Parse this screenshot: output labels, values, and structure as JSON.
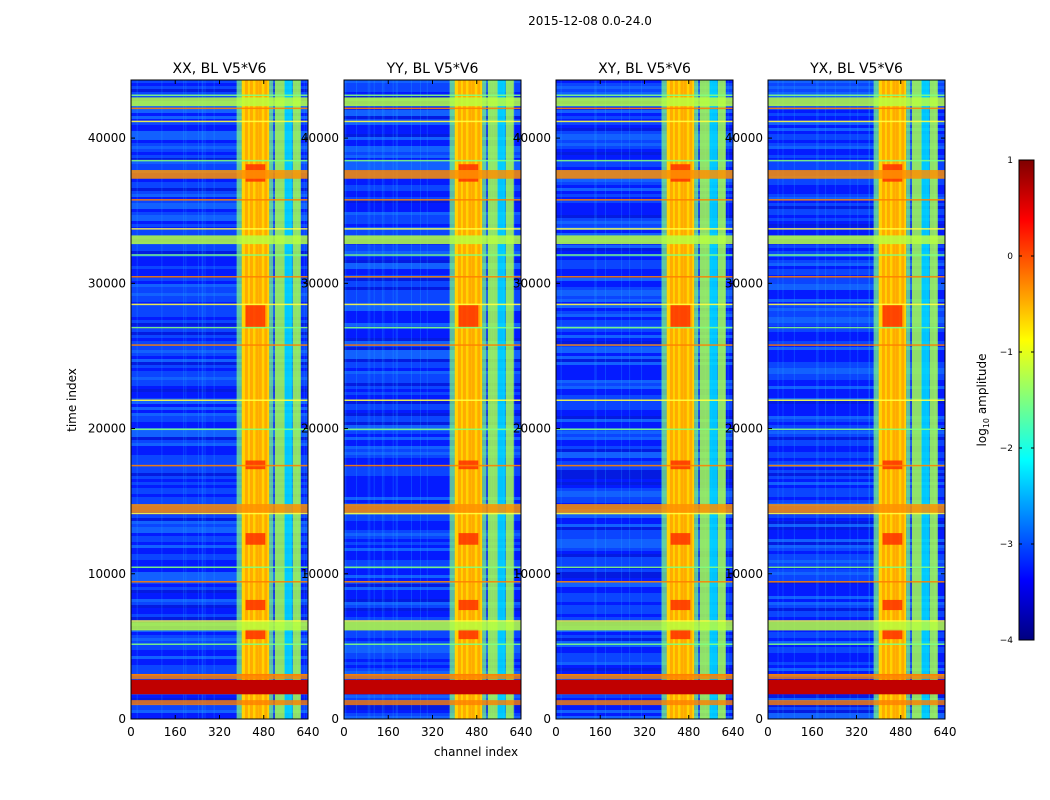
{
  "figure": {
    "suptitle": "2015-12-08 0.0-24.0"
  },
  "colors": {
    "background": "#00007f",
    "colormap": [
      "#00007f",
      "#0000ff",
      "#007fff",
      "#00ffff",
      "#7fff7f",
      "#ffff00",
      "#ff7f00",
      "#ff0000",
      "#7f0000"
    ]
  },
  "chart_data": {
    "type": "heatmap",
    "shared": {
      "xlabel": "channel index",
      "ylabel": "time index",
      "xlim": [
        0,
        640
      ],
      "ylim": [
        0,
        44000
      ],
      "xticks": [
        0,
        160,
        320,
        480,
        640
      ],
      "yticks": [
        0,
        10000,
        20000,
        30000,
        40000
      ],
      "colorbar": {
        "label": "log10 amplitude",
        "label_base": "log",
        "label_sub": "10",
        "label_rest": " amplitude",
        "range": [
          -4,
          1
        ],
        "ticks": [
          1,
          0,
          -1,
          -2,
          -3,
          -4
        ],
        "tick_labels": [
          "1",
          "0",
          "−1",
          "−2",
          "−3",
          "−4"
        ]
      }
    },
    "panels": [
      {
        "title": "XX, BL V5*V6",
        "bright_band": [
          400,
          500
        ],
        "horizontal_band_level": "strong"
      },
      {
        "title": "YY, BL V5*V6",
        "bright_band": [
          400,
          500
        ],
        "horizontal_band_level": "strong"
      },
      {
        "title": "XY, BL V5*V6",
        "bright_band": [
          400,
          500
        ],
        "horizontal_band_level": "strong"
      },
      {
        "title": "YX, BL V5*V6",
        "bright_band": [
          400,
          500
        ],
        "horizontal_band_level": "strong"
      }
    ],
    "features": {
      "bright_channel_band": [
        400,
        500
      ],
      "secondary_channel_stripes": [
        520,
        555,
        585
      ],
      "strong_time_bands": [
        2200,
        6400,
        14500,
        33000,
        37500,
        42500
      ],
      "rfi_time_lines": [
        3100,
        5200,
        6800,
        9500,
        10500,
        14200,
        17500,
        20000,
        22000,
        25800,
        27000,
        28600,
        30500,
        32000,
        33800,
        35800,
        38500,
        41200,
        42100,
        43000
      ]
    }
  }
}
